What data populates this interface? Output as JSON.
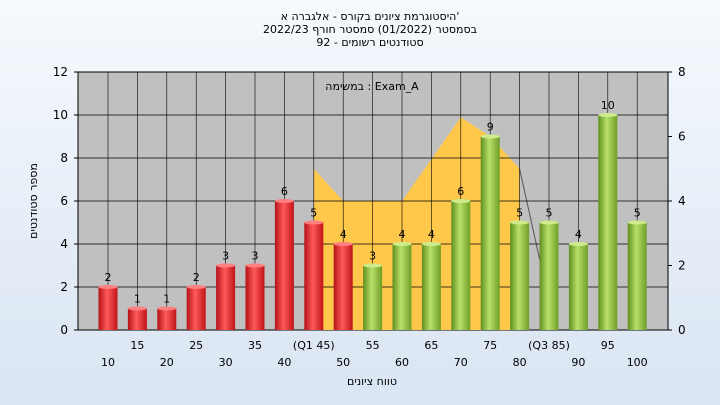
{
  "chart_data": {
    "type": "bar",
    "title_lines": [
      "היסטוגרמת ציונים בקורס - אלגברה א'",
      "בסמסטר  (01/2022)  סמסטר חורף  2022/23",
      "סטודנטים רשומים - 92"
    ],
    "xlabel": "טווח ציונים",
    "ylabel": "מספר סטודנטים",
    "annotation": "במשימה : Exam_A",
    "ylim": [
      0,
      12
    ],
    "yticks": [
      0,
      2,
      4,
      6,
      8,
      10,
      12
    ],
    "y2lim": [
      0,
      8
    ],
    "y2ticks": [
      0,
      2,
      4,
      6,
      8
    ],
    "grid": true,
    "legend": "none",
    "categories": [
      "10",
      "15",
      "20",
      "25",
      "30",
      "35",
      "40",
      "(Q1 45)",
      "50",
      "55",
      "60",
      "65",
      "70",
      "75",
      "80",
      "(Q3 85)",
      "90",
      "95",
      "100"
    ],
    "values": [
      2,
      1,
      1,
      2,
      3,
      3,
      6,
      5,
      4,
      3,
      4,
      4,
      6,
      9,
      5,
      5,
      4,
      10,
      5
    ],
    "data_labels": [
      "2",
      "1",
      "1",
      "2",
      "3",
      "3",
      "6",
      "5",
      "4",
      "3",
      "4",
      "4",
      "6",
      "9",
      "5",
      "5",
      "4",
      "10",
      "5"
    ],
    "bar_colors": [
      "red",
      "red",
      "red",
      "red",
      "red",
      "red",
      "red",
      "red",
      "red",
      "green",
      "green",
      "green",
      "green",
      "green",
      "green",
      "green",
      "green",
      "green",
      "green"
    ],
    "area_series": {
      "x_start": "(Q1 45)",
      "x_end": "(Q3 85)",
      "values": [
        5,
        4,
        4,
        4,
        5.3,
        6.6,
        6,
        5
      ]
    },
    "colors": {
      "red": "#e8262a",
      "green": "#8dc63f",
      "area": "#ffc84a",
      "plot_bg": "#c0c0c0",
      "grid": "#000000"
    }
  }
}
